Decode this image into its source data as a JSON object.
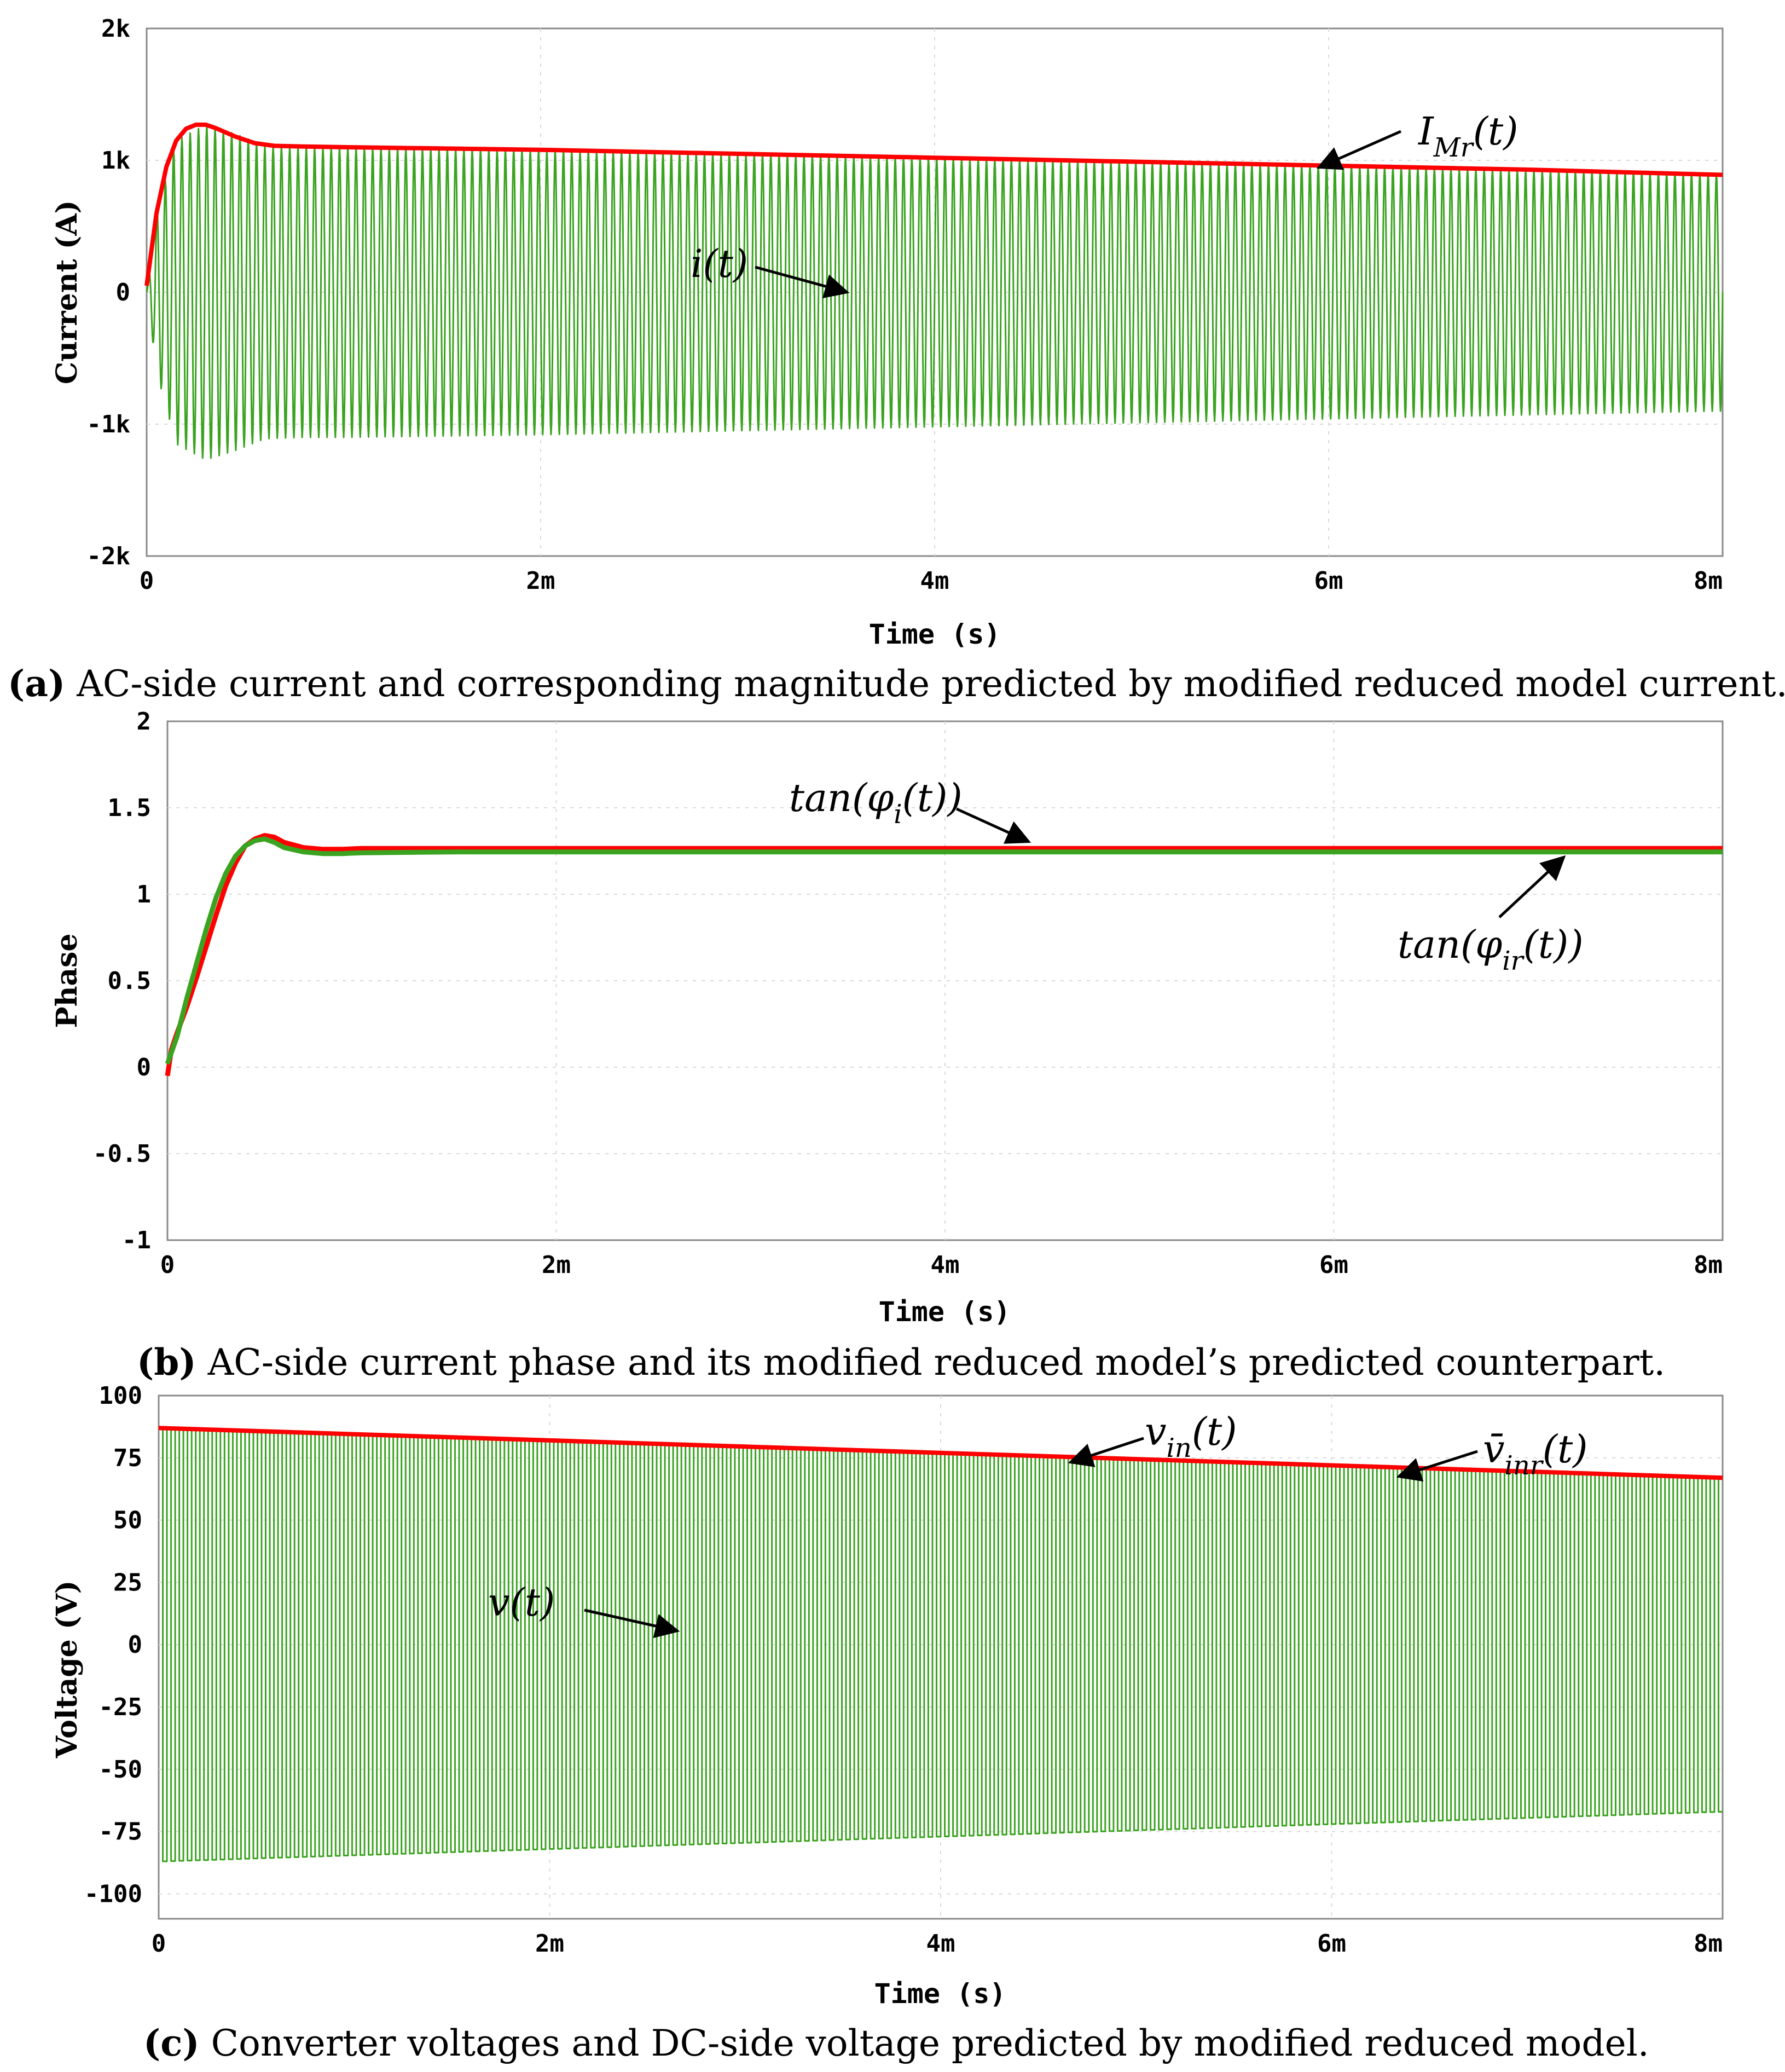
{
  "colors": {
    "measured": "#3aa31f",
    "model": "#ff0000",
    "frame": "#8a8a8a",
    "grid": "#d9d9d9"
  },
  "chart_data": [
    {
      "id": "a",
      "type": "line",
      "title": "",
      "xlabel": "Time (s)",
      "ylabel": "Current (A)",
      "xlim": [
        0,
        8
      ],
      "ylim": [
        -2000,
        2000
      ],
      "xticks": [
        {
          "v": 0,
          "label": "0"
        },
        {
          "v": 2,
          "label": "2m"
        },
        {
          "v": 4,
          "label": "4m"
        },
        {
          "v": 6,
          "label": "6m"
        },
        {
          "v": 8,
          "label": "8m"
        }
      ],
      "yticks": [
        {
          "v": 2000,
          "label": "2k"
        },
        {
          "v": 1000,
          "label": "1k"
        },
        {
          "v": 0,
          "label": "0"
        },
        {
          "v": -1000,
          "label": "-1k"
        },
        {
          "v": -2000,
          "label": "-2k"
        }
      ],
      "series": [
        {
          "name": "i(t)",
          "kind": "oscillation",
          "color": "#3aa31f",
          "cycles": 190,
          "envelope": {
            "x": [
              0,
              0.05,
              0.15,
              0.3,
              0.45,
              0.6,
              0.8,
              1,
              2,
              3,
              4,
              5,
              6,
              7,
              8
            ],
            "y": [
              0,
              600,
              1150,
              1270,
              1200,
              1110,
              1100,
              1100,
              1080,
              1050,
              1020,
              990,
              960,
              930,
              900
            ]
          }
        },
        {
          "name": "I_Mr(t)",
          "kind": "line",
          "color": "#ff0000",
          "x": [
            0,
            0.05,
            0.1,
            0.15,
            0.2,
            0.25,
            0.3,
            0.35,
            0.45,
            0.55,
            0.65,
            0.8,
            1,
            2,
            3,
            4,
            5,
            6,
            7,
            8
          ],
          "y": [
            50,
            600,
            950,
            1150,
            1240,
            1270,
            1270,
            1245,
            1180,
            1130,
            1110,
            1105,
            1100,
            1080,
            1050,
            1020,
            990,
            960,
            930,
            890
          ]
        }
      ],
      "annotations": [
        {
          "text": "I",
          "sub": "Mr",
          "tail": "(t)"
        },
        {
          "text": "i(t)",
          "sub": "",
          "tail": ""
        }
      ],
      "caption": {
        "label": "(a)",
        "text": " AC-side current and corresponding magnitude predicted by modified reduced model current."
      }
    },
    {
      "id": "b",
      "type": "line",
      "title": "",
      "xlabel": "Time (s)",
      "ylabel": "Phase",
      "xlim": [
        0,
        8
      ],
      "ylim": [
        -1,
        2
      ],
      "xticks": [
        {
          "v": 0,
          "label": "0"
        },
        {
          "v": 2,
          "label": "2m"
        },
        {
          "v": 4,
          "label": "4m"
        },
        {
          "v": 6,
          "label": "6m"
        },
        {
          "v": 8,
          "label": "8m"
        }
      ],
      "yticks": [
        {
          "v": 2,
          "label": "2"
        },
        {
          "v": 1.5,
          "label": "1.5"
        },
        {
          "v": 1,
          "label": "1"
        },
        {
          "v": 0.5,
          "label": "0.5"
        },
        {
          "v": 0,
          "label": "0"
        },
        {
          "v": -0.5,
          "label": "-0.5"
        },
        {
          "v": -1,
          "label": "-1"
        }
      ],
      "series": [
        {
          "name": "tan(φ_i(t))",
          "kind": "line",
          "color": "#ff0000",
          "x": [
            0,
            0.02,
            0.05,
            0.1,
            0.15,
            0.2,
            0.25,
            0.3,
            0.35,
            0.4,
            0.45,
            0.5,
            0.55,
            0.6,
            0.7,
            0.8,
            0.9,
            1.0,
            1.5,
            2,
            4,
            6,
            8
          ],
          "y": [
            -0.05,
            0.1,
            0.2,
            0.35,
            0.52,
            0.7,
            0.88,
            1.05,
            1.18,
            1.28,
            1.32,
            1.34,
            1.33,
            1.3,
            1.27,
            1.26,
            1.26,
            1.265,
            1.265,
            1.265,
            1.265,
            1.265,
            1.265
          ]
        },
        {
          "name": "tan(φ_ir(t))",
          "kind": "line",
          "color": "#3aa31f",
          "x": [
            0,
            0.05,
            0.1,
            0.15,
            0.2,
            0.25,
            0.3,
            0.35,
            0.4,
            0.45,
            0.5,
            0.55,
            0.6,
            0.7,
            0.8,
            0.9,
            1.0,
            1.5,
            2,
            4,
            6,
            8
          ],
          "y": [
            0.02,
            0.18,
            0.4,
            0.6,
            0.8,
            0.98,
            1.12,
            1.22,
            1.28,
            1.31,
            1.32,
            1.3,
            1.27,
            1.245,
            1.235,
            1.235,
            1.24,
            1.245,
            1.245,
            1.245,
            1.245,
            1.245
          ]
        }
      ],
      "annotations": [
        {
          "text": "tan(φ",
          "sub": "i",
          "tail": "(t))"
        },
        {
          "text": "tan(φ",
          "sub": "ir",
          "tail": "(t))"
        }
      ],
      "caption": {
        "label": "(b)",
        "text": " AC-side current phase and its modified reduced model’s predicted counterpart."
      }
    },
    {
      "id": "c",
      "type": "line",
      "title": "",
      "xlabel": "Time (s)",
      "ylabel": "Voltage (V)",
      "xlim": [
        0,
        8
      ],
      "ylim": [
        -110,
        100
      ],
      "xticks": [
        {
          "v": 0,
          "label": "0"
        },
        {
          "v": 2,
          "label": "2m"
        },
        {
          "v": 4,
          "label": "4m"
        },
        {
          "v": 6,
          "label": "6m"
        },
        {
          "v": 8,
          "label": "8m"
        }
      ],
      "yticks": [
        {
          "v": 100,
          "label": "100"
        },
        {
          "v": 75,
          "label": "75"
        },
        {
          "v": 50,
          "label": "50"
        },
        {
          "v": 25,
          "label": "25"
        },
        {
          "v": 0,
          "label": "0"
        },
        {
          "v": -25,
          "label": "-25"
        },
        {
          "v": -50,
          "label": "-50"
        },
        {
          "v": -75,
          "label": "-75"
        },
        {
          "v": -100,
          "label": "-100"
        }
      ],
      "series": [
        {
          "name": "v(t)",
          "kind": "square",
          "color": "#3aa31f",
          "cycles": 190,
          "envelope": {
            "x": [
              0,
              8
            ],
            "y": [
              87,
              67
            ]
          }
        },
        {
          "name": "v_in(t) / v̄_inr(t)",
          "kind": "line",
          "color": "#ff0000",
          "x": [
            0,
            1,
            2,
            3,
            4,
            5,
            6,
            7,
            8
          ],
          "y": [
            87,
            84.5,
            82,
            79.5,
            77,
            74.5,
            72,
            69.5,
            67
          ]
        }
      ],
      "annotations": [
        {
          "text": "v",
          "sub": "in",
          "tail": "(t)"
        },
        {
          "text": "v̄",
          "sub": "inr",
          "tail": "(t)"
        },
        {
          "text": "v(t)",
          "sub": "",
          "tail": ""
        }
      ],
      "caption": {
        "label": "(c)",
        "text": " Converter voltages and DC-side voltage predicted by modified reduced model."
      }
    }
  ]
}
